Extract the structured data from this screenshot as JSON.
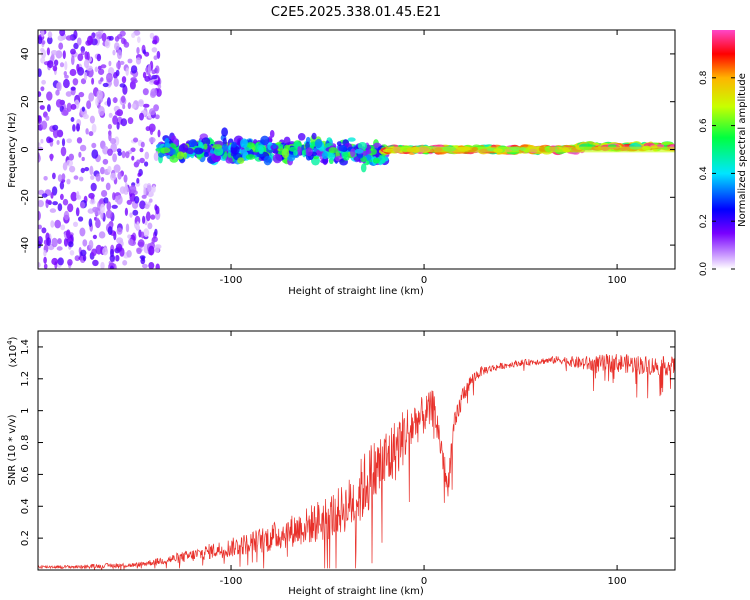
{
  "title": "C2E5.2025.338.01.45.E21",
  "colors": {
    "snr_line": "#e8302a",
    "frame": "#000000"
  },
  "chart_data": [
    {
      "type": "heatmap",
      "name": "spectrogram",
      "xlabel": "Height of straight line (km)",
      "ylabel": "Frequency (Hz)",
      "xlim": [
        -200,
        130
      ],
      "ylim": [
        -50,
        50
      ],
      "x_ticks": [
        -100,
        0,
        100
      ],
      "y_ticks": [
        -40,
        -20,
        0,
        20,
        40
      ],
      "x_tick_labels": [
        "-100",
        "0",
        "100"
      ],
      "y_tick_labels": [
        "-40",
        "-20",
        "0",
        "20",
        "40"
      ],
      "colorbar": {
        "label": "Normalized spectral amplitude",
        "range": [
          0,
          1
        ],
        "ticks": [
          0.0,
          0.2,
          0.4,
          0.6,
          0.8
        ],
        "tick_labels": [
          "0.0",
          "0.2",
          "0.4",
          "0.6",
          "0.8"
        ],
        "colormap": [
          "#ffffff",
          "#c896ff",
          "#7800ff",
          "#0000ff",
          "#00e6ff",
          "#00ff40",
          "#c8ff00",
          "#ffb400",
          "#ff0000",
          "#ff46c8"
        ]
      },
      "segments": [
        {
          "description": "diffuse scatter",
          "x_range": [
            -200,
            -137
          ],
          "freq_spread": 50,
          "amplitude": 0.25
        },
        {
          "description": "broad band",
          "x_range": [
            -137,
            -20
          ],
          "freq_spread": 8,
          "amplitude": 0.45
        },
        {
          "description": "narrow line",
          "x_range": [
            -20,
            130
          ],
          "freq_spread": 2,
          "amplitude": 0.95
        }
      ]
    },
    {
      "type": "line",
      "name": "snr",
      "xlabel": "Height of straight line (km)",
      "ylabel": "SNR (10 * v/v)",
      "y_multiplier": "(x10",
      "y_multiplier_exp": "4",
      "y_multiplier_close": ")",
      "xlim": [
        -200,
        130
      ],
      "ylim": [
        0,
        1.5
      ],
      "x_ticks": [
        -100,
        0,
        100
      ],
      "y_ticks": [
        0.2,
        0.4,
        0.6,
        0.8,
        1.0,
        1.2,
        1.4
      ],
      "x_tick_labels": [
        "-100",
        "0",
        "100"
      ],
      "y_tick_labels": [
        "0.2",
        "0.4",
        "0.6",
        "0.8",
        "1",
        "1.2",
        "1.4"
      ],
      "series": [
        {
          "name": "SNR",
          "x": [
            -200,
            -180,
            -160,
            -150,
            -140,
            -130,
            -120,
            -110,
            -100,
            -90,
            -80,
            -70,
            -60,
            -50,
            -45,
            -40,
            -35,
            -30,
            -25,
            -20,
            -15,
            -10,
            -5,
            0,
            5,
            10,
            12,
            15,
            20,
            25,
            30,
            40,
            50,
            60,
            70,
            80,
            90,
            100,
            110,
            120,
            130
          ],
          "y": [
            0.02,
            0.02,
            0.03,
            0.03,
            0.05,
            0.07,
            0.09,
            0.12,
            0.14,
            0.17,
            0.2,
            0.24,
            0.28,
            0.33,
            0.36,
            0.4,
            0.45,
            0.55,
            0.62,
            0.68,
            0.75,
            0.85,
            0.92,
            0.97,
            1.02,
            0.7,
            0.5,
            0.85,
            1.1,
            1.2,
            1.25,
            1.28,
            1.3,
            1.31,
            1.32,
            1.3,
            1.29,
            1.3,
            1.29,
            1.28,
            1.28
          ],
          "noise_amplitude": [
            0.01,
            0.01,
            0.015,
            0.015,
            0.02,
            0.03,
            0.04,
            0.05,
            0.06,
            0.07,
            0.09,
            0.1,
            0.12,
            0.15,
            0.15,
            0.16,
            0.2,
            0.22,
            0.22,
            0.22,
            0.2,
            0.18,
            0.15,
            0.12,
            0.12,
            0.1,
            0.08,
            0.1,
            0.06,
            0.04,
            0.03,
            0.02,
            0.02,
            0.02,
            0.025,
            0.04,
            0.06,
            0.06,
            0.06,
            0.06,
            0.06
          ]
        }
      ]
    }
  ]
}
